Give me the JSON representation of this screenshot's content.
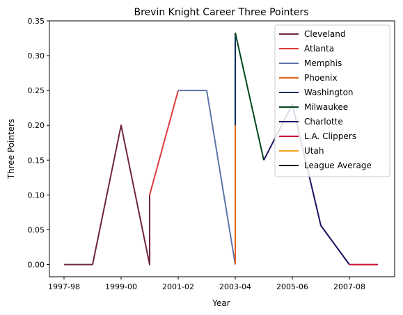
{
  "chart_data": {
    "type": "line",
    "title": "Brevin Knight Career Three Pointers",
    "xlabel": "Year",
    "ylabel": "Three Pointers",
    "x_ticks": [
      "1997-98",
      "1999-00",
      "2001-02",
      "2003-04",
      "2005-06",
      "2007-08"
    ],
    "y_ticks": [
      "0.00",
      "0.05",
      "0.10",
      "0.15",
      "0.20",
      "0.25",
      "0.30",
      "0.35"
    ],
    "ylim": [
      -0.0175,
      0.35
    ],
    "legend_position": "upper right",
    "grid": false,
    "series": [
      {
        "name": "Cleveland",
        "color": "#6f263d",
        "points": [
          [
            "1997-98",
            0.0
          ],
          [
            "1998-99",
            0.0
          ],
          [
            "1999-00",
            0.2
          ],
          [
            "2000-01",
            0.0
          ],
          [
            "2000-01",
            0.1
          ]
        ]
      },
      {
        "name": "Atlanta",
        "color": "#e03a3e",
        "points": [
          [
            "2000-01",
            0.1
          ],
          [
            "2001-02",
            0.25
          ]
        ]
      },
      {
        "name": "Memphis",
        "color": "#5d76a9",
        "points": [
          [
            "2001-02",
            0.25
          ],
          [
            "2002-03",
            0.25
          ],
          [
            "2003-04",
            0.0
          ]
        ]
      },
      {
        "name": "Phoenix",
        "color": "#e56020",
        "points": [
          [
            "2003-04",
            0.0
          ],
          [
            "2003-04",
            0.2
          ]
        ]
      },
      {
        "name": "Washington",
        "color": "#002b5c",
        "points": [
          [
            "2003-04",
            0.2
          ],
          [
            "2003-04",
            0.333
          ]
        ]
      },
      {
        "name": "Milwaukee",
        "color": "#00471b",
        "points": [
          [
            "2003-04",
            0.333
          ],
          [
            "2004-05",
            0.15
          ]
        ]
      },
      {
        "name": "Charlotte",
        "color": "#1d1160",
        "points": [
          [
            "2004-05",
            0.15
          ],
          [
            "2005-06",
            0.23
          ],
          [
            "2006-07",
            0.056
          ],
          [
            "2007-08",
            0.0
          ]
        ]
      },
      {
        "name": "L.A. Clippers",
        "color": "#c8102e",
        "points": [
          [
            "2007-08",
            0.0
          ],
          [
            "2008-09",
            0.0
          ]
        ]
      },
      {
        "name": "Utah",
        "color": "#f9a01b",
        "points": []
      },
      {
        "name": "League Average",
        "color": "#000000",
        "points": []
      }
    ]
  }
}
